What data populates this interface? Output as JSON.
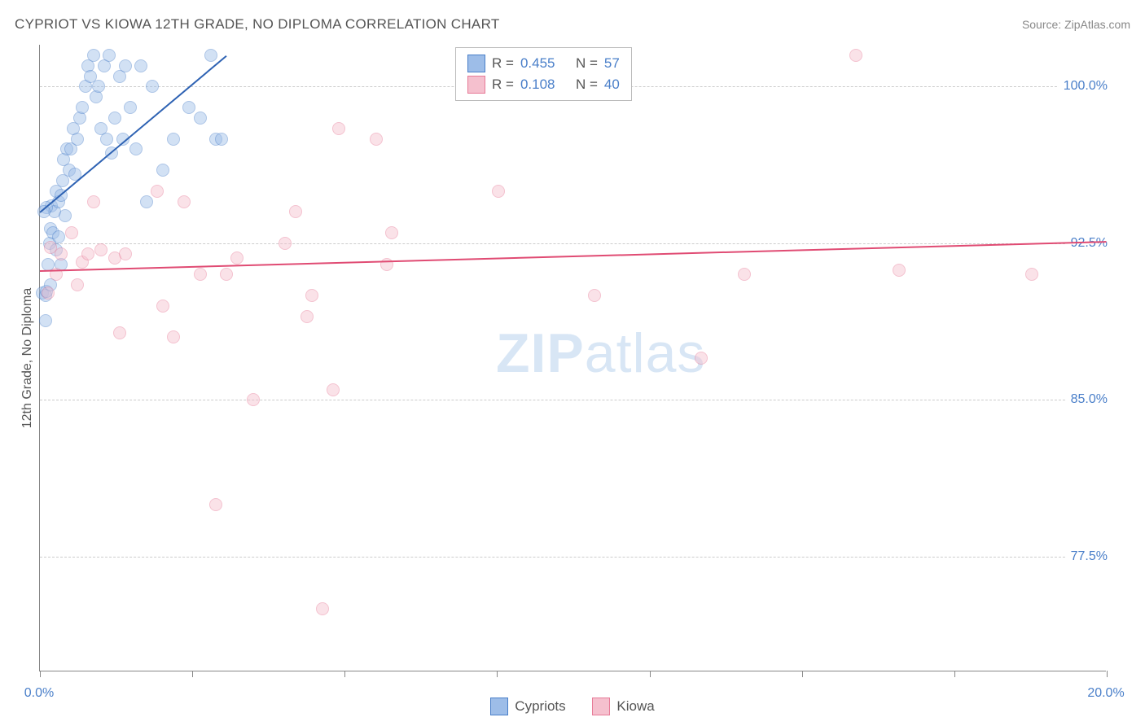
{
  "title": "CYPRIOT VS KIOWA 12TH GRADE, NO DIPLOMA CORRELATION CHART",
  "source": "Source: ZipAtlas.com",
  "y_axis_label": "12th Grade, No Diploma",
  "watermark_zip": "ZIP",
  "watermark_atlas": "atlas",
  "chart": {
    "type": "scatter",
    "background_color": "#ffffff",
    "grid_color": "#cccccc",
    "axis_color": "#888888",
    "tick_label_color": "#4a7fc9",
    "xlim": [
      0.0,
      20.0
    ],
    "ylim": [
      72.0,
      102.0
    ],
    "x_ticks": [
      0.0,
      2.86,
      5.71,
      8.57,
      11.43,
      14.29,
      17.14,
      20.0
    ],
    "x_tick_labels": {
      "0": "0.0%",
      "20": "20.0%"
    },
    "y_ticks": [
      77.5,
      85.0,
      92.5,
      100.0
    ],
    "y_tick_labels": [
      "77.5%",
      "85.0%",
      "92.5%",
      "100.0%"
    ],
    "marker_radius": 8,
    "marker_opacity": 0.45,
    "line_width": 2
  },
  "series": [
    {
      "name": "Cypriots",
      "color_fill": "#9dbde8",
      "color_stroke": "#4a7fc9",
      "r": "0.455",
      "n": "57",
      "regression": {
        "x1": 0.0,
        "y1": 94.0,
        "x2": 3.5,
        "y2": 101.5,
        "color": "#2e62b3"
      },
      "points": [
        [
          0.05,
          90.1
        ],
        [
          0.1,
          90.0
        ],
        [
          0.12,
          90.2
        ],
        [
          0.15,
          91.5
        ],
        [
          0.18,
          92.5
        ],
        [
          0.2,
          93.2
        ],
        [
          0.22,
          94.3
        ],
        [
          0.25,
          93.0
        ],
        [
          0.28,
          94.0
        ],
        [
          0.3,
          95.0
        ],
        [
          0.35,
          94.5
        ],
        [
          0.4,
          94.8
        ],
        [
          0.42,
          95.5
        ],
        [
          0.45,
          96.5
        ],
        [
          0.48,
          93.8
        ],
        [
          0.5,
          97.0
        ],
        [
          0.55,
          96.0
        ],
        [
          0.58,
          97.0
        ],
        [
          0.62,
          98.0
        ],
        [
          0.65,
          95.8
        ],
        [
          0.7,
          97.5
        ],
        [
          0.75,
          98.5
        ],
        [
          0.8,
          99.0
        ],
        [
          0.85,
          100.0
        ],
        [
          0.9,
          101.0
        ],
        [
          0.95,
          100.5
        ],
        [
          1.0,
          101.5
        ],
        [
          1.05,
          99.5
        ],
        [
          1.1,
          100.0
        ],
        [
          1.15,
          98.0
        ],
        [
          1.2,
          101.0
        ],
        [
          1.25,
          97.5
        ],
        [
          1.3,
          101.5
        ],
        [
          1.35,
          96.8
        ],
        [
          1.4,
          98.5
        ],
        [
          1.5,
          100.5
        ],
        [
          1.55,
          97.5
        ],
        [
          1.6,
          101.0
        ],
        [
          1.7,
          99.0
        ],
        [
          1.8,
          97.0
        ],
        [
          1.9,
          101.0
        ],
        [
          2.0,
          94.5
        ],
        [
          2.1,
          100.0
        ],
        [
          2.3,
          96.0
        ],
        [
          2.5,
          97.5
        ],
        [
          2.8,
          99.0
        ],
        [
          3.0,
          98.5
        ],
        [
          3.2,
          101.5
        ],
        [
          3.3,
          97.5
        ],
        [
          3.4,
          97.5
        ],
        [
          0.1,
          88.8
        ],
        [
          0.3,
          92.2
        ],
        [
          0.35,
          92.8
        ],
        [
          0.4,
          91.5
        ],
        [
          0.2,
          90.5
        ],
        [
          0.12,
          94.2
        ],
        [
          0.08,
          94.0
        ]
      ]
    },
    {
      "name": "Kiowa",
      "color_fill": "#f5c0ce",
      "color_stroke": "#e77a97",
      "r": "0.108",
      "n": "40",
      "regression": {
        "x1": 0.0,
        "y1": 91.2,
        "x2": 20.0,
        "y2": 92.6,
        "color": "#e04b73"
      },
      "points": [
        [
          0.15,
          90.1
        ],
        [
          0.2,
          92.3
        ],
        [
          0.3,
          91.0
        ],
        [
          0.4,
          92.0
        ],
        [
          0.6,
          93.0
        ],
        [
          0.7,
          90.5
        ],
        [
          0.8,
          91.6
        ],
        [
          0.9,
          92.0
        ],
        [
          1.0,
          94.5
        ],
        [
          1.15,
          92.2
        ],
        [
          1.4,
          91.8
        ],
        [
          1.6,
          92.0
        ],
        [
          1.5,
          88.2
        ],
        [
          2.2,
          95.0
        ],
        [
          2.3,
          89.5
        ],
        [
          2.5,
          88.0
        ],
        [
          2.7,
          94.5
        ],
        [
          3.0,
          91.0
        ],
        [
          3.3,
          80.0
        ],
        [
          3.5,
          91.0
        ],
        [
          3.7,
          91.8
        ],
        [
          4.0,
          85.0
        ],
        [
          4.8,
          94.0
        ],
        [
          5.0,
          89.0
        ],
        [
          5.3,
          75.0
        ],
        [
          5.5,
          85.5
        ],
        [
          5.6,
          98.0
        ],
        [
          6.3,
          97.5
        ],
        [
          6.5,
          91.5
        ],
        [
          6.6,
          93.0
        ],
        [
          8.4,
          101.5
        ],
        [
          8.6,
          95.0
        ],
        [
          10.4,
          90.0
        ],
        [
          12.4,
          87.0
        ],
        [
          13.2,
          91.0
        ],
        [
          15.3,
          101.5
        ],
        [
          16.1,
          91.2
        ],
        [
          18.6,
          91.0
        ],
        [
          4.6,
          92.5
        ],
        [
          5.1,
          90.0
        ]
      ]
    }
  ],
  "legend_top": {
    "r_label": "R =",
    "n_label": "N ="
  },
  "legend_bottom": {
    "items": [
      "Cypriots",
      "Kiowa"
    ]
  }
}
